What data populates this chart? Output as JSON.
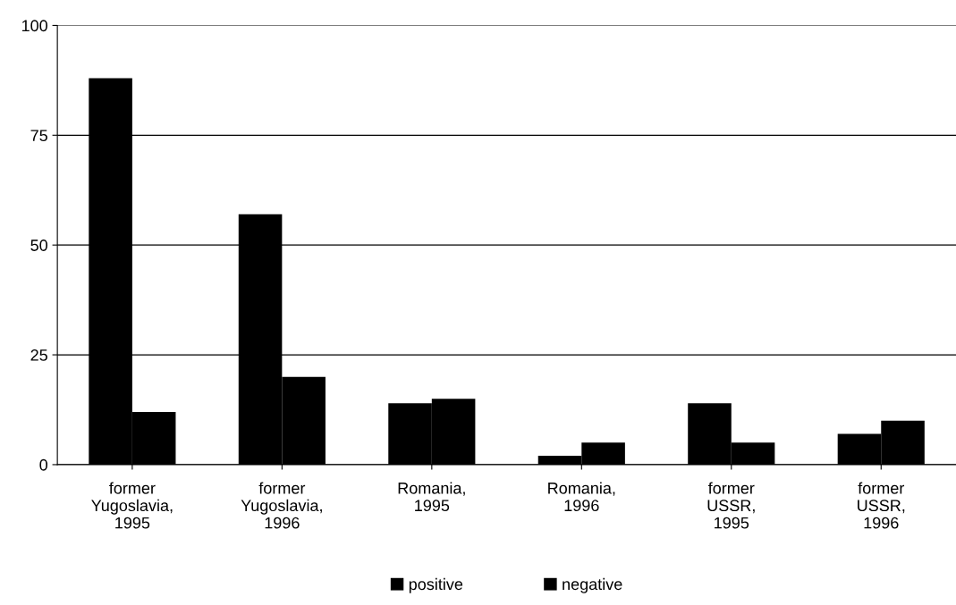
{
  "chart_data": {
    "type": "bar",
    "categories": [
      "former\nYugoslavia,\n1995",
      "former\nYugoslavia,\n1996",
      "Romania,\n1995",
      "Romania,\n1996",
      "former\nUSSR,\n1995",
      "former\nUSSR,\n1996"
    ],
    "series": [
      {
        "name": "positive",
        "color": "#000000",
        "values": [
          88,
          57,
          14,
          2,
          14,
          7
        ]
      },
      {
        "name": "negative",
        "color": "#000000",
        "values": [
          12,
          20,
          15,
          5,
          5,
          10
        ]
      }
    ],
    "ylim": [
      0,
      100
    ],
    "yticks": [
      0,
      25,
      50,
      75,
      100
    ],
    "grid": "y",
    "legend": "bottom"
  }
}
